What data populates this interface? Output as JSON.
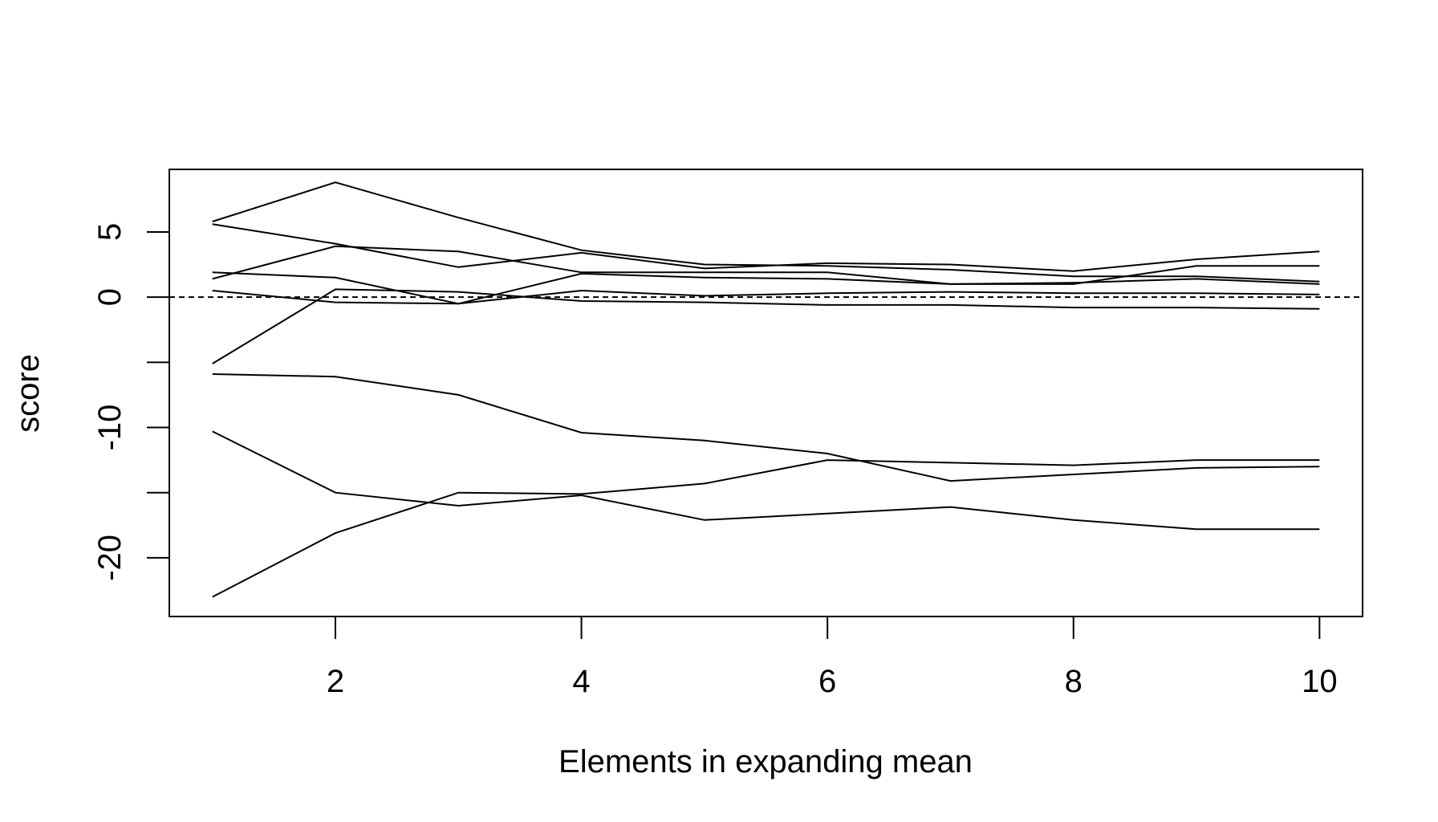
{
  "chart_data": {
    "type": "line",
    "title": "",
    "xlabel": "Elements in expanding mean",
    "ylabel": "score",
    "xlim": [
      0.65,
      10.35
    ],
    "ylim": [
      -24.5,
      9.8
    ],
    "x_ticks": [
      2,
      4,
      6,
      8,
      10
    ],
    "x_tick_labels": [
      "2",
      "4",
      "6",
      "8",
      "10"
    ],
    "y_ticks": [
      -20,
      -15,
      -10,
      -5,
      0,
      5
    ],
    "y_tick_labels": [
      "-20",
      "",
      "-10",
      "",
      "0",
      "5"
    ],
    "reference_line": {
      "y": 0,
      "style": "dashed"
    },
    "grid": false,
    "legend": "none",
    "line_color": "#000000",
    "x": [
      1,
      2,
      3,
      4,
      5,
      6,
      7,
      8,
      9,
      10
    ],
    "series": [
      {
        "values": [
          5.8,
          8.8,
          6.1,
          3.6,
          2.5,
          2.4,
          2.1,
          1.6,
          1.6,
          1.2
        ]
      },
      {
        "values": [
          5.6,
          4.1,
          2.3,
          3.4,
          2.2,
          2.6,
          2.5,
          2.0,
          2.9,
          3.5
        ]
      },
      {
        "values": [
          1.4,
          3.9,
          3.5,
          1.9,
          1.9,
          1.9,
          1.0,
          1.0,
          2.4,
          2.4
        ]
      },
      {
        "values": [
          1.9,
          1.5,
          -0.5,
          1.8,
          1.5,
          1.4,
          1.0,
          1.1,
          1.4,
          1.0
        ]
      },
      {
        "values": [
          0.5,
          -0.4,
          -0.5,
          0.5,
          0.1,
          0.3,
          0.4,
          0.3,
          0.3,
          0.2
        ]
      },
      {
        "values": [
          -5.1,
          0.6,
          0.4,
          -0.3,
          -0.4,
          -0.6,
          -0.6,
          -0.8,
          -0.8,
          -0.9
        ]
      },
      {
        "values": [
          -5.9,
          -6.1,
          -7.5,
          -10.4,
          -11.0,
          -12.0,
          -14.1,
          -13.6,
          -13.1,
          -13.0
        ]
      },
      {
        "values": [
          -10.3,
          -15.0,
          -16.0,
          -15.2,
          -17.1,
          -16.6,
          -16.1,
          -17.1,
          -17.8,
          -17.8
        ]
      },
      {
        "values": [
          -23.0,
          -18.1,
          -15.0,
          -15.1,
          -14.3,
          -12.5,
          -12.7,
          -12.9,
          -12.5,
          -12.5
        ]
      }
    ]
  }
}
